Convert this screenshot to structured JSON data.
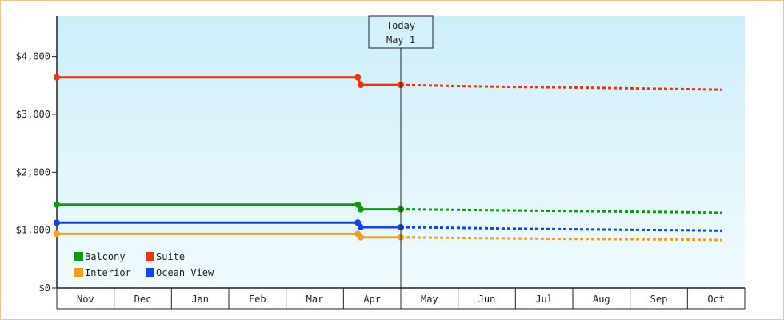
{
  "chart_data": {
    "type": "line",
    "title": "",
    "xlabel": "",
    "ylabel": "",
    "ylim": [
      0,
      4700
    ],
    "y_ticks": [
      {
        "value": 0,
        "label": "$0"
      },
      {
        "value": 1000,
        "label": "$1,000"
      },
      {
        "value": 2000,
        "label": "$2,000"
      },
      {
        "value": 3000,
        "label": "$3,000"
      },
      {
        "value": 4000,
        "label": "$4,000"
      }
    ],
    "months": [
      "Nov",
      "Dec",
      "Jan",
      "Feb",
      "Mar",
      "Apr",
      "May",
      "Jun",
      "Jul",
      "Aug",
      "Sep",
      "Oct"
    ],
    "grid": false,
    "background": {
      "top": "#cdeef9",
      "bottom": "#f1fbfe"
    },
    "today": {
      "line1": "Today",
      "line2": "May 1",
      "month_index": 6
    },
    "legend_placement": "bottom-left",
    "series": [
      {
        "name": "Balcony",
        "color": "#119911",
        "history": [
          [
            0,
            1440
          ],
          [
            5.25,
            1440
          ]
        ],
        "drop": [
          [
            5.25,
            1440
          ],
          [
            5.3,
            1360
          ],
          [
            6,
            1360
          ]
        ],
        "forecast": [
          [
            6,
            1360
          ],
          [
            7,
            1350
          ],
          [
            8,
            1340
          ],
          [
            9,
            1330
          ],
          [
            10,
            1320
          ],
          [
            11,
            1310
          ],
          [
            11.6,
            1300
          ]
        ]
      },
      {
        "name": "Suite",
        "color": "#ee3311",
        "history": [
          [
            0,
            3640
          ],
          [
            5.25,
            3640
          ]
        ],
        "drop": [
          [
            5.25,
            3640
          ],
          [
            5.3,
            3510
          ],
          [
            6,
            3510
          ]
        ],
        "forecast": [
          [
            6,
            3510
          ],
          [
            7,
            3490
          ],
          [
            8,
            3475
          ],
          [
            9,
            3465
          ],
          [
            10,
            3450
          ],
          [
            11,
            3435
          ],
          [
            11.6,
            3425
          ]
        ]
      },
      {
        "name": "Interior",
        "color": "#f0a020",
        "history": [
          [
            0,
            935
          ],
          [
            5.25,
            935
          ]
        ],
        "drop": [
          [
            5.25,
            935
          ],
          [
            5.3,
            875
          ],
          [
            6,
            875
          ]
        ],
        "forecast": [
          [
            6,
            875
          ],
          [
            7,
            865
          ],
          [
            8,
            855
          ],
          [
            9,
            848
          ],
          [
            10,
            842
          ],
          [
            11,
            836
          ],
          [
            11.6,
            830
          ]
        ]
      },
      {
        "name": "Ocean View",
        "color": "#1144ee",
        "history": [
          [
            0,
            1130
          ],
          [
            5.25,
            1130
          ]
        ],
        "drop": [
          [
            5.25,
            1130
          ],
          [
            5.3,
            1050
          ],
          [
            6,
            1050
          ]
        ],
        "forecast": [
          [
            6,
            1050
          ],
          [
            7,
            1040
          ],
          [
            8,
            1025
          ],
          [
            9,
            1015
          ],
          [
            10,
            1005
          ],
          [
            11,
            998
          ],
          [
            11.6,
            990
          ]
        ]
      }
    ]
  }
}
